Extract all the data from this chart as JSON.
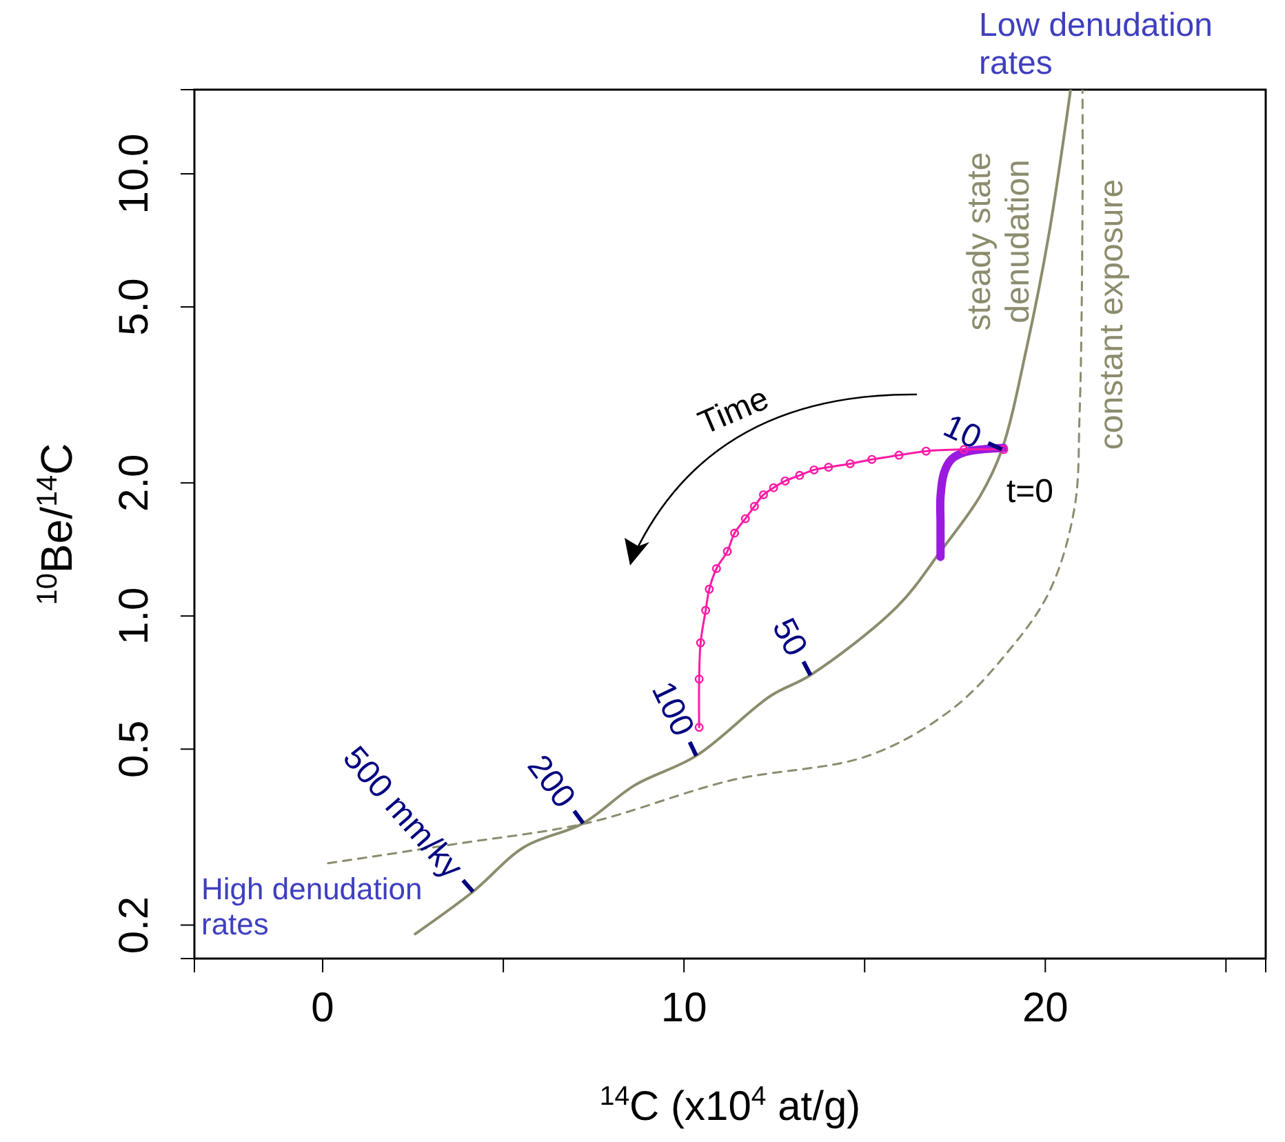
{
  "chart_data": {
    "type": "line",
    "xlabel": "$^{14}$C (x10$^{4}$ at/g)",
    "ylabel": "$^{10}$Be/$^{14}$C",
    "log": "y",
    "xlim": [
      -3.55,
      26.1
    ],
    "ylim": [
      0.168,
      15.5
    ],
    "xticks": [
      {
        "value": 0,
        "label": "0"
      },
      {
        "value": 5,
        "label": null
      },
      {
        "value": 10,
        "label": "10"
      },
      {
        "value": 15,
        "label": null
      },
      {
        "value": 20,
        "label": "20"
      },
      {
        "value": 25,
        "label": null
      }
    ],
    "yticks": [
      {
        "value": 0.2,
        "label": "0.2"
      },
      {
        "value": 0.5,
        "label": "0.5"
      },
      {
        "value": 1,
        "label": "1.0"
      },
      {
        "value": 2,
        "label": "2.0"
      },
      {
        "value": 5,
        "label": "5.0"
      },
      {
        "value": 10,
        "label": "10.0"
      }
    ],
    "series": [
      {
        "name": "steady state denudation",
        "color": "#8c8c6e",
        "line_style": "solid",
        "marker": "none",
        "x": [
          2.56,
          4.16,
          5.57,
          7.21,
          8.63,
          10.34,
          12.4,
          13.5,
          15.9,
          17.1,
          18.2,
          18.8,
          19.5,
          20.1,
          20.7
        ],
        "values": [
          0.191,
          0.238,
          0.3,
          0.34,
          0.414,
          0.483,
          0.66,
          0.735,
          1.05,
          1.4,
          1.87,
          2.38,
          4.1,
          7.3,
          15.5
        ]
      },
      {
        "name": "constant exposure",
        "color": "#8c8c6e",
        "line_style": "dashed",
        "marker": "none",
        "x": [
          0.15,
          3.66,
          7.3,
          11.3,
          15.1,
          17.4,
          18.9,
          20.1,
          20.8,
          20.95,
          21.03,
          21.03
        ],
        "values": [
          0.276,
          0.305,
          0.34,
          0.425,
          0.483,
          0.614,
          0.818,
          1.13,
          1.74,
          2.87,
          8.4,
          15.5
        ]
      },
      {
        "color": "#9b1ae0",
        "line_style": "solid",
        "marker": "none",
        "x": [
          18.85,
          17.8,
          17.4,
          17.2,
          17.1,
          17.1,
          17.1
        ],
        "values": [
          2.4,
          2.35,
          2.26,
          2.11,
          1.86,
          1.62,
          1.36
        ]
      },
      {
        "color": "#ff1aa6",
        "line_style": "solid",
        "marker": "circle",
        "x": [
          18.85,
          17.75,
          16.7,
          15.95,
          15.2,
          14.6,
          14.0,
          13.6,
          13.2,
          12.8,
          12.48,
          12.2,
          11.95,
          11.7,
          11.4,
          11.2,
          10.9,
          10.7,
          10.6,
          10.46,
          10.42,
          10.42
        ],
        "values": [
          2.38,
          2.38,
          2.36,
          2.31,
          2.26,
          2.21,
          2.17,
          2.14,
          2.08,
          2.02,
          1.95,
          1.88,
          1.77,
          1.66,
          1.54,
          1.4,
          1.28,
          1.15,
          1.03,
          0.87,
          0.72,
          0.56
        ]
      }
    ],
    "annotations": [
      "Low denudation rates",
      "High denudation rates",
      "Time",
      {
        "text": "t=0",
        "x": 18.85,
        "y": 2.38
      },
      {
        "text": "500 mm/ky",
        "x": 4.16,
        "y": 0.238
      },
      {
        "text": "200",
        "x": 7.21,
        "y": 0.34
      },
      {
        "text": "100",
        "x": 10.34,
        "y": 0.483
      },
      {
        "text": "50",
        "x": 13.5,
        "y": 0.735
      },
      {
        "text": "10",
        "x": 18.8,
        "y": 2.38
      }
    ]
  }
}
